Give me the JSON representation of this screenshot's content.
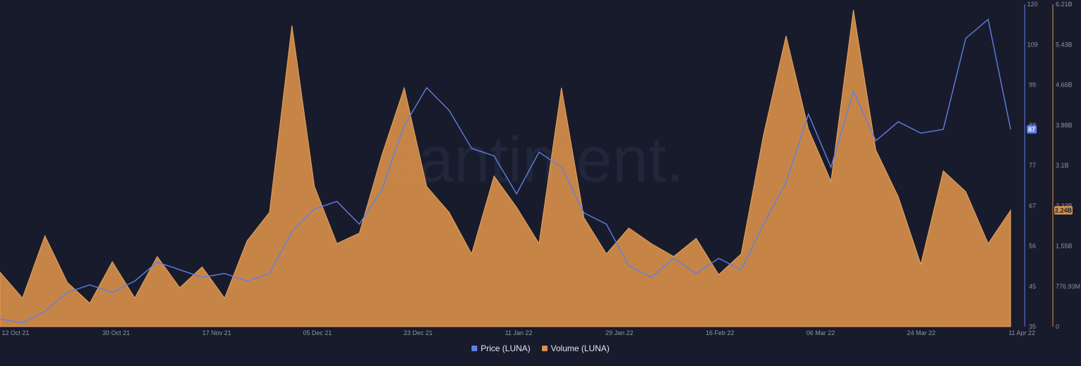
{
  "chart_data": {
    "type": "area",
    "watermark": "santiment.",
    "x_ticks": [
      "12 Oct 21",
      "30 Oct 21",
      "17 Nov 21",
      "05 Dec 21",
      "23 Dec 21",
      "11 Jan 22",
      "29 Jan 22",
      "16 Feb 22",
      "06 Mar 22",
      "24 Mar 22",
      "11 Apr 22"
    ],
    "x": [
      "12 Oct 21",
      "16 Oct 21",
      "20 Oct 21",
      "24 Oct 21",
      "28 Oct 21",
      "01 Nov 21",
      "05 Nov 21",
      "09 Nov 21",
      "13 Nov 21",
      "17 Nov 21",
      "21 Nov 21",
      "25 Nov 21",
      "29 Nov 21",
      "03 Dec 21",
      "07 Dec 21",
      "11 Dec 21",
      "15 Dec 21",
      "19 Dec 21",
      "23 Dec 21",
      "27 Dec 21",
      "31 Dec 21",
      "04 Jan 22",
      "08 Jan 22",
      "12 Jan 22",
      "16 Jan 22",
      "20 Jan 22",
      "24 Jan 22",
      "28 Jan 22",
      "01 Feb 22",
      "05 Feb 22",
      "09 Feb 22",
      "13 Feb 22",
      "17 Feb 22",
      "21 Feb 22",
      "25 Feb 22",
      "01 Mar 22",
      "05 Mar 22",
      "09 Mar 22",
      "13 Mar 22",
      "17 Mar 22",
      "21 Mar 22",
      "25 Mar 22",
      "29 Mar 22",
      "02 Apr 22",
      "06 Apr 22",
      "11 Apr 22"
    ],
    "series": [
      {
        "name": "Price (LUNA)",
        "color": "#5f7fe8",
        "axis": "left",
        "values": [
          37,
          36,
          39,
          44,
          46,
          44,
          47,
          52,
          50,
          48,
          49,
          47,
          49,
          60,
          66,
          68,
          62,
          71,
          88,
          98,
          92,
          82,
          80,
          70,
          81,
          77,
          65,
          62,
          51,
          48,
          53,
          49,
          53,
          50,
          62,
          73,
          91,
          77,
          97,
          84,
          89,
          86,
          87,
          111,
          116,
          87
        ]
      },
      {
        "name": "Volume (LUNA)",
        "color": "#d9914a",
        "axis": "right",
        "values": [
          1.05,
          0.55,
          1.75,
          0.85,
          0.45,
          1.25,
          0.55,
          1.35,
          0.75,
          1.15,
          0.55,
          1.65,
          2.2,
          5.8,
          2.7,
          1.6,
          1.8,
          3.3,
          4.6,
          2.7,
          2.2,
          1.4,
          2.9,
          2.3,
          1.6,
          4.6,
          2.1,
          1.4,
          1.9,
          1.6,
          1.35,
          1.7,
          1.0,
          1.4,
          3.7,
          5.6,
          3.8,
          2.8,
          6.1,
          3.4,
          2.5,
          1.2,
          3.0,
          2.6,
          1.6,
          2.24
        ]
      }
    ],
    "left_axis": {
      "ylim": [
        35,
        120
      ],
      "ticks": [
        "35",
        "45",
        "56",
        "67",
        "77",
        "88",
        "99",
        "109",
        "120"
      ]
    },
    "right_axis": {
      "ylim": [
        0,
        6.21
      ],
      "ticks": [
        "0",
        "776.93M",
        "1.55B",
        "2.33B",
        "3.1B",
        "3.88B",
        "4.66B",
        "5.43B",
        "6.21B"
      ]
    },
    "badges": {
      "price": "87",
      "volume": "2.24B"
    },
    "legend": [
      "Price (LUNA)",
      "Volume (LUNA)"
    ],
    "legend_placement": "bottom-center",
    "grid": false
  }
}
